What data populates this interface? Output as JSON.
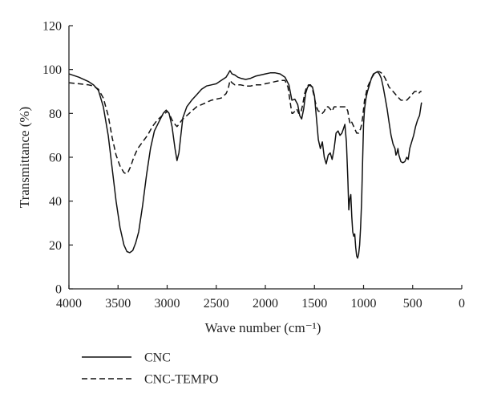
{
  "colors": {
    "axis": "#222222",
    "series": "#111111",
    "background": "#ffffff"
  },
  "chart_data": {
    "type": "line",
    "title": "",
    "xlabel": "Wave number (cm⁻¹)",
    "ylabel": "Transmittance (%)",
    "xlim": [
      4000,
      0
    ],
    "ylim": [
      0,
      120
    ],
    "x_reversed": true,
    "x_ticks": [
      4000,
      3500,
      3000,
      2500,
      2000,
      1500,
      1000,
      500,
      0
    ],
    "y_ticks": [
      0,
      20,
      40,
      60,
      80,
      100,
      120
    ],
    "grid": false,
    "legend_position": "below-left",
    "series": [
      {
        "name": "CNC",
        "dash": "solid",
        "points": [
          [
            4000,
            98
          ],
          [
            3900,
            96.5
          ],
          [
            3800,
            94.5
          ],
          [
            3750,
            93
          ],
          [
            3700,
            90.5
          ],
          [
            3650,
            83
          ],
          [
            3600,
            70
          ],
          [
            3560,
            55
          ],
          [
            3520,
            40
          ],
          [
            3480,
            28
          ],
          [
            3440,
            20
          ],
          [
            3410,
            17
          ],
          [
            3380,
            16.5
          ],
          [
            3350,
            17.5
          ],
          [
            3320,
            21
          ],
          [
            3290,
            26
          ],
          [
            3250,
            38
          ],
          [
            3210,
            52
          ],
          [
            3170,
            64
          ],
          [
            3130,
            72
          ],
          [
            3080,
            76.5
          ],
          [
            3040,
            80
          ],
          [
            3010,
            81.5
          ],
          [
            2980,
            80
          ],
          [
            2950,
            74
          ],
          [
            2920,
            64
          ],
          [
            2900,
            58.5
          ],
          [
            2880,
            62
          ],
          [
            2860,
            70
          ],
          [
            2840,
            78
          ],
          [
            2800,
            83
          ],
          [
            2750,
            86
          ],
          [
            2700,
            88.5
          ],
          [
            2650,
            91
          ],
          [
            2600,
            92.5
          ],
          [
            2550,
            93
          ],
          [
            2500,
            93.5
          ],
          [
            2450,
            95
          ],
          [
            2400,
            96.5
          ],
          [
            2380,
            98
          ],
          [
            2360,
            99.5
          ],
          [
            2340,
            98
          ],
          [
            2310,
            97.5
          ],
          [
            2280,
            96.5
          ],
          [
            2250,
            96
          ],
          [
            2200,
            95.5
          ],
          [
            2150,
            96
          ],
          [
            2100,
            97
          ],
          [
            2050,
            97.5
          ],
          [
            2000,
            98
          ],
          [
            1950,
            98.5
          ],
          [
            1900,
            98.5
          ],
          [
            1850,
            98
          ],
          [
            1800,
            96.5
          ],
          [
            1760,
            93
          ],
          [
            1730,
            86
          ],
          [
            1700,
            86.5
          ],
          [
            1670,
            84
          ],
          [
            1650,
            79
          ],
          [
            1630,
            77.5
          ],
          [
            1610,
            82
          ],
          [
            1590,
            89
          ],
          [
            1570,
            92
          ],
          [
            1545,
            93
          ],
          [
            1520,
            92
          ],
          [
            1500,
            88
          ],
          [
            1480,
            78
          ],
          [
            1460,
            68
          ],
          [
            1440,
            64
          ],
          [
            1420,
            67
          ],
          [
            1400,
            60
          ],
          [
            1380,
            57
          ],
          [
            1360,
            61
          ],
          [
            1340,
            62
          ],
          [
            1320,
            59
          ],
          [
            1300,
            64
          ],
          [
            1280,
            71
          ],
          [
            1260,
            72
          ],
          [
            1240,
            70
          ],
          [
            1220,
            71
          ],
          [
            1205,
            73
          ],
          [
            1190,
            75
          ],
          [
            1175,
            67
          ],
          [
            1160,
            50
          ],
          [
            1150,
            36
          ],
          [
            1140,
            41
          ],
          [
            1130,
            43
          ],
          [
            1120,
            33
          ],
          [
            1110,
            26
          ],
          [
            1100,
            24
          ],
          [
            1090,
            25
          ],
          [
            1080,
            19
          ],
          [
            1070,
            15
          ],
          [
            1060,
            14
          ],
          [
            1050,
            16
          ],
          [
            1040,
            20
          ],
          [
            1030,
            28
          ],
          [
            1020,
            40
          ],
          [
            1010,
            58
          ],
          [
            1000,
            75
          ],
          [
            990,
            82
          ],
          [
            975,
            87
          ],
          [
            960,
            90
          ],
          [
            940,
            93
          ],
          [
            920,
            96
          ],
          [
            900,
            98
          ],
          [
            880,
            98.5
          ],
          [
            860,
            99
          ],
          [
            840,
            98
          ],
          [
            820,
            96
          ],
          [
            800,
            92
          ],
          [
            780,
            87
          ],
          [
            760,
            82
          ],
          [
            740,
            76
          ],
          [
            720,
            70
          ],
          [
            700,
            66
          ],
          [
            680,
            64
          ],
          [
            670,
            61
          ],
          [
            660,
            62
          ],
          [
            650,
            64
          ],
          [
            640,
            61
          ],
          [
            620,
            58
          ],
          [
            600,
            57.5
          ],
          [
            580,
            58
          ],
          [
            560,
            60
          ],
          [
            545,
            59
          ],
          [
            530,
            64
          ],
          [
            510,
            67
          ],
          [
            490,
            70
          ],
          [
            470,
            74
          ],
          [
            450,
            77
          ],
          [
            430,
            79
          ],
          [
            410,
            85
          ]
        ]
      },
      {
        "name": "CNC-TEMPO",
        "dash": "dashed",
        "points": [
          [
            4000,
            94
          ],
          [
            3900,
            93.5
          ],
          [
            3800,
            93
          ],
          [
            3750,
            92.5
          ],
          [
            3700,
            91
          ],
          [
            3650,
            87
          ],
          [
            3600,
            79
          ],
          [
            3560,
            69
          ],
          [
            3520,
            61
          ],
          [
            3480,
            56
          ],
          [
            3440,
            53
          ],
          [
            3420,
            52.5
          ],
          [
            3400,
            53
          ],
          [
            3370,
            56
          ],
          [
            3340,
            60
          ],
          [
            3300,
            64
          ],
          [
            3250,
            67
          ],
          [
            3200,
            70
          ],
          [
            3150,
            74
          ],
          [
            3100,
            77
          ],
          [
            3050,
            79
          ],
          [
            3020,
            80
          ],
          [
            3000,
            81
          ],
          [
            2980,
            80
          ],
          [
            2950,
            77
          ],
          [
            2920,
            75
          ],
          [
            2900,
            74
          ],
          [
            2880,
            75
          ],
          [
            2850,
            77
          ],
          [
            2800,
            79
          ],
          [
            2750,
            81
          ],
          [
            2700,
            83
          ],
          [
            2650,
            84
          ],
          [
            2600,
            85
          ],
          [
            2550,
            86
          ],
          [
            2500,
            86.5
          ],
          [
            2450,
            87
          ],
          [
            2400,
            89
          ],
          [
            2380,
            91
          ],
          [
            2360,
            95
          ],
          [
            2340,
            94
          ],
          [
            2310,
            93
          ],
          [
            2280,
            93
          ],
          [
            2250,
            93
          ],
          [
            2200,
            92.5
          ],
          [
            2150,
            92.5
          ],
          [
            2100,
            93
          ],
          [
            2050,
            93
          ],
          [
            2000,
            93.5
          ],
          [
            1950,
            94
          ],
          [
            1900,
            94.5
          ],
          [
            1850,
            95
          ],
          [
            1800,
            95
          ],
          [
            1770,
            92
          ],
          [
            1750,
            86
          ],
          [
            1730,
            80
          ],
          [
            1720,
            80
          ],
          [
            1700,
            81
          ],
          [
            1680,
            82
          ],
          [
            1660,
            80
          ],
          [
            1640,
            80
          ],
          [
            1620,
            84
          ],
          [
            1600,
            89
          ],
          [
            1580,
            92
          ],
          [
            1560,
            93
          ],
          [
            1540,
            93
          ],
          [
            1520,
            91
          ],
          [
            1500,
            87
          ],
          [
            1480,
            83
          ],
          [
            1460,
            81
          ],
          [
            1440,
            81
          ],
          [
            1420,
            80
          ],
          [
            1400,
            81
          ],
          [
            1380,
            83
          ],
          [
            1360,
            83
          ],
          [
            1340,
            82
          ],
          [
            1320,
            81
          ],
          [
            1300,
            83
          ],
          [
            1280,
            83
          ],
          [
            1260,
            83
          ],
          [
            1240,
            83
          ],
          [
            1220,
            83
          ],
          [
            1200,
            83
          ],
          [
            1180,
            83
          ],
          [
            1160,
            81
          ],
          [
            1150,
            78
          ],
          [
            1140,
            76
          ],
          [
            1130,
            75
          ],
          [
            1120,
            76
          ],
          [
            1110,
            75
          ],
          [
            1100,
            74
          ],
          [
            1090,
            73
          ],
          [
            1080,
            72
          ],
          [
            1070,
            71
          ],
          [
            1060,
            71
          ],
          [
            1050,
            71
          ],
          [
            1040,
            72
          ],
          [
            1030,
            73
          ],
          [
            1020,
            75
          ],
          [
            1010,
            78
          ],
          [
            1000,
            82
          ],
          [
            990,
            86
          ],
          [
            975,
            89
          ],
          [
            960,
            92
          ],
          [
            940,
            94
          ],
          [
            920,
            96
          ],
          [
            900,
            97.5
          ],
          [
            880,
            98.5
          ],
          [
            860,
            99
          ],
          [
            840,
            99
          ],
          [
            820,
            98.5
          ],
          [
            800,
            97.5
          ],
          [
            780,
            96
          ],
          [
            760,
            94
          ],
          [
            740,
            92
          ],
          [
            720,
            91
          ],
          [
            700,
            90
          ],
          [
            680,
            89
          ],
          [
            660,
            88
          ],
          [
            640,
            87
          ],
          [
            620,
            86
          ],
          [
            600,
            86
          ],
          [
            580,
            86
          ],
          [
            560,
            86
          ],
          [
            540,
            87
          ],
          [
            520,
            88
          ],
          [
            500,
            89
          ],
          [
            480,
            90
          ],
          [
            460,
            90
          ],
          [
            440,
            89
          ],
          [
            420,
            90
          ],
          [
            410,
            90
          ]
        ]
      }
    ]
  }
}
